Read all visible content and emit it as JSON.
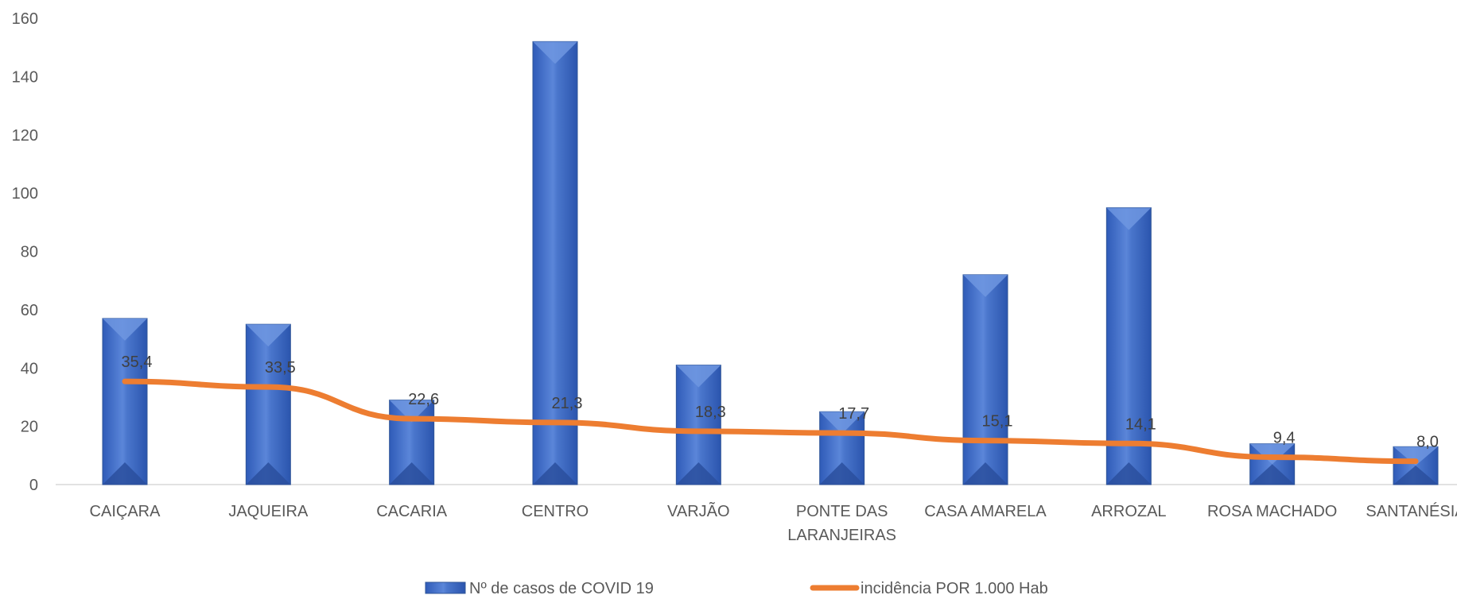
{
  "chart_data": {
    "type": "bar",
    "categories": [
      "CAIÇARA",
      "JAQUEIRA",
      "CACARIA",
      "CENTRO",
      "VARJÃO",
      "PONTE DAS LARANJEIRAS",
      "CASA AMARELA",
      "ARROZAL",
      "ROSA MACHADO",
      "SANTANÉSIA"
    ],
    "category_lines": [
      [
        "CAIÇARA"
      ],
      [
        "JAQUEIRA"
      ],
      [
        "CACARIA"
      ],
      [
        "CENTRO"
      ],
      [
        "VARJÃO"
      ],
      [
        "PONTE DAS",
        "LARANJEIRAS"
      ],
      [
        "CASA AMARELA"
      ],
      [
        "ARROZAL"
      ],
      [
        "ROSA MACHADO"
      ],
      [
        "SANTANÉSIA"
      ]
    ],
    "series": [
      {
        "name": "Nº de casos de COVID 19",
        "type": "bar",
        "color": "#4472C4",
        "values": [
          57,
          55,
          29,
          152,
          41,
          25,
          72,
          95,
          14,
          13
        ]
      },
      {
        "name": "incidência POR 1.000 Hab",
        "type": "line",
        "color": "#ED7D31",
        "values": [
          35.4,
          33.5,
          22.6,
          21.3,
          18.3,
          17.7,
          15.1,
          14.1,
          9.4,
          8.0
        ],
        "data_labels": [
          "35,4",
          "33,5",
          "22,6",
          "21,3",
          "18,3",
          "17,7",
          "15,1",
          "14,1",
          "9,4",
          "8,0"
        ]
      }
    ],
    "y_ticks": [
      0,
      20,
      40,
      60,
      80,
      100,
      120,
      140,
      160
    ],
    "ylim": [
      0,
      160
    ],
    "grid": false,
    "legend_position": "bottom"
  }
}
